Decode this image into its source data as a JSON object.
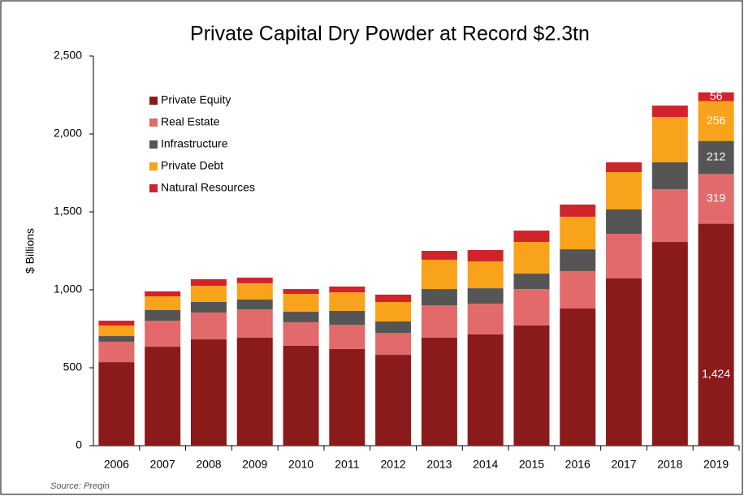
{
  "chart_data": {
    "type": "stacked_bar",
    "title": "Private Capital Dry Powder at Record $2.3tn",
    "y_label": "$ Billions",
    "source": "Source:  Preqin",
    "categories": [
      "2006",
      "2007",
      "2008",
      "2009",
      "2010",
      "2011",
      "2012",
      "2013",
      "2014",
      "2015",
      "2016",
      "2017",
      "2018",
      "2019"
    ],
    "series": [
      {
        "name": "Private Equity",
        "color": "#8b1a1a",
        "values": [
          536,
          635,
          682,
          693,
          641,
          620,
          583,
          693,
          714,
          771,
          880,
          1073,
          1307,
          1424
        ],
        "value_labels": [
          null,
          null,
          null,
          null,
          null,
          null,
          null,
          null,
          null,
          null,
          null,
          null,
          null,
          "1,424"
        ]
      },
      {
        "name": "Real Estate",
        "color": "#e26a6a",
        "values": [
          131,
          167,
          172,
          182,
          151,
          156,
          141,
          208,
          197,
          234,
          240,
          286,
          339,
          319
        ],
        "value_labels": [
          null,
          null,
          null,
          null,
          null,
          null,
          null,
          null,
          null,
          null,
          null,
          null,
          null,
          "319"
        ]
      },
      {
        "name": "Infrastructure",
        "color": "#555555",
        "values": [
          36,
          68,
          68,
          63,
          67,
          89,
          73,
          104,
          99,
          99,
          140,
          157,
          172,
          212
        ],
        "value_labels": [
          null,
          null,
          null,
          null,
          null,
          null,
          null,
          null,
          null,
          null,
          null,
          null,
          null,
          "212"
        ]
      },
      {
        "name": "Private Debt",
        "color": "#f9a21b",
        "values": [
          68,
          88,
          104,
          104,
          115,
          119,
          125,
          188,
          172,
          203,
          209,
          239,
          291,
          256
        ],
        "value_labels": [
          null,
          null,
          null,
          null,
          null,
          null,
          null,
          null,
          null,
          null,
          null,
          null,
          null,
          "256"
        ]
      },
      {
        "name": "Natural Resources",
        "color": "#d0242a",
        "values": [
          31,
          32,
          42,
          36,
          31,
          37,
          47,
          57,
          73,
          73,
          78,
          63,
          73,
          56
        ],
        "value_labels": [
          null,
          null,
          null,
          null,
          null,
          null,
          null,
          null,
          null,
          null,
          null,
          null,
          null,
          "56"
        ]
      }
    ],
    "ylim": [
      0,
      2500
    ],
    "yticks": [
      0,
      500,
      {
        "value": 1000,
        "label": "1,000"
      },
      {
        "value": 1500,
        "label": "1,500"
      },
      {
        "value": 2000,
        "label": "2,000"
      },
      {
        "value": 2500,
        "label": "2,500"
      }
    ],
    "grid": false,
    "legend": "upper left"
  }
}
